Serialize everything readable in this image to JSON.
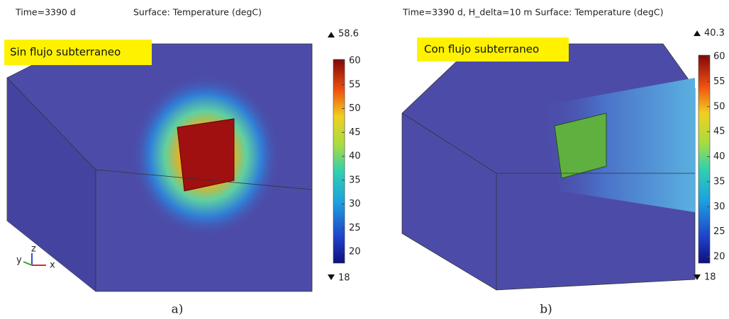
{
  "panels": [
    {
      "header_time": "Time=3390 d",
      "header_surface": "Surface: Temperature (degC)",
      "label": "Sin flujo subterraneo",
      "max": 58.6,
      "min": 18,
      "colorbar_ticks": [
        20,
        25,
        30,
        35,
        40,
        45,
        50,
        55,
        60
      ],
      "caption": "a)"
    },
    {
      "header": "Time=3390 d, H_delta=10 m  Surface: Temperature (degC)",
      "label": "Con flujo subterraneo",
      "max": 40.3,
      "min": 18,
      "colorbar_ticks": [
        20,
        25,
        30,
        35,
        40,
        45,
        50,
        55,
        60
      ],
      "caption": "b)"
    }
  ],
  "axes_triad": {
    "x": "x",
    "y": "y",
    "z": "z"
  }
}
